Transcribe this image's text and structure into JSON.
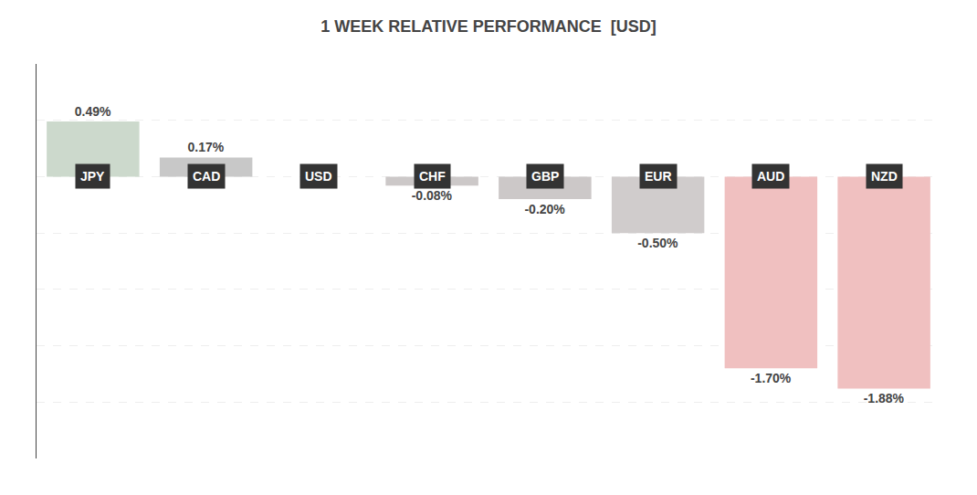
{
  "chart_data": {
    "type": "bar",
    "title": "1 WEEK RELATIVE PERFORMANCE  [USD]",
    "categories": [
      "JPY",
      "CAD",
      "USD",
      "CHF",
      "GBP",
      "EUR",
      "AUD",
      "NZD"
    ],
    "values": [
      0.49,
      0.17,
      0.0,
      -0.08,
      -0.2,
      -0.5,
      -1.7,
      -1.88
    ],
    "value_labels": [
      "0.49%",
      "0.17%",
      null,
      "-0.08%",
      "-0.20%",
      "-0.50%",
      "-1.70%",
      "-1.88%"
    ],
    "colors": [
      "#ccd9cc",
      "#c8c8c8",
      "#ffffff",
      "#ccc8c8",
      "#ccc8c8",
      "#d0cccc",
      "#f0c0c0",
      "#f0c0c0"
    ],
    "ylim": [
      -2.5,
      1.0
    ],
    "yticks": [
      -2.0,
      -1.5,
      -1.0,
      -0.5,
      0.0,
      0.5
    ],
    "grid": true,
    "data_labels": true,
    "tick_labels": false
  }
}
